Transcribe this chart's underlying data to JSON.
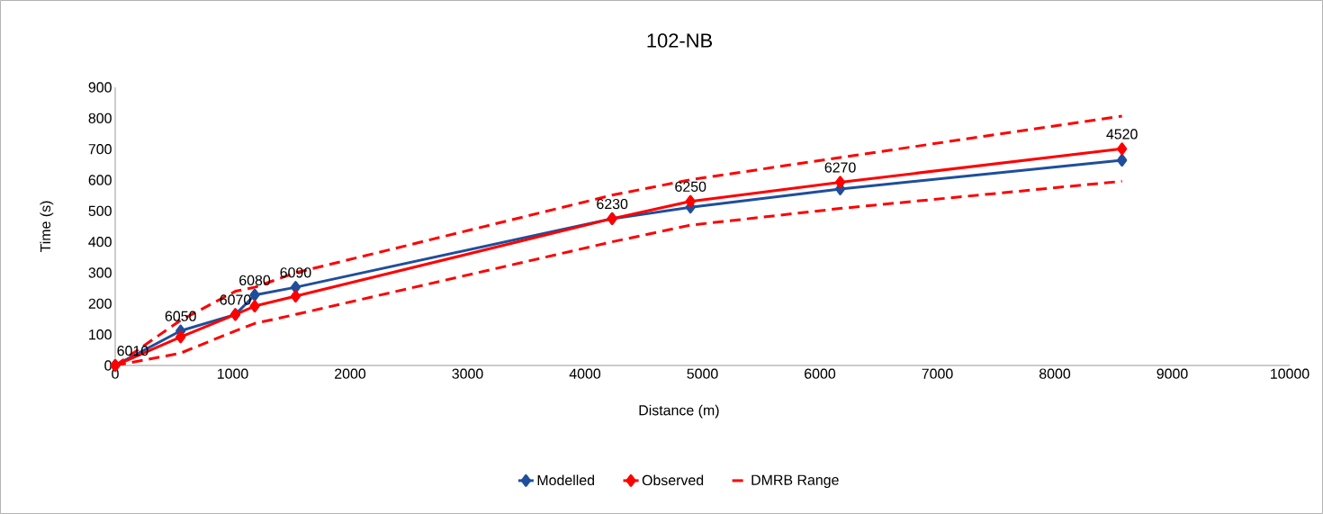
{
  "chart_data": {
    "type": "line",
    "title": "102-NB",
    "xlabel": "Distance (m)",
    "ylabel": "Time (s)",
    "xlim": [
      0,
      10000
    ],
    "ylim": [
      0,
      900
    ],
    "xticks": [
      0,
      1000,
      2000,
      3000,
      4000,
      5000,
      6000,
      7000,
      8000,
      9000,
      10000
    ],
    "yticks": [
      0,
      100,
      200,
      300,
      400,
      500,
      600,
      700,
      800,
      900
    ],
    "grid": false,
    "legend": "bottom",
    "series": [
      {
        "name": "Modelled",
        "color": "#1f4e9c",
        "marker": "diamond",
        "line_style": "solid",
        "x": [
          0,
          557,
          1023,
          1188,
          1536,
          4231,
          4898,
          6173,
          8572
        ],
        "values": [
          0,
          112,
          165,
          228,
          253,
          475,
          512,
          571,
          664
        ]
      },
      {
        "name": "Observed",
        "color": "#ff0000",
        "marker": "diamond",
        "line_style": "solid",
        "x": [
          0,
          557,
          1023,
          1188,
          1536,
          4231,
          4898,
          6173,
          8572
        ],
        "values": [
          0,
          92,
          165,
          192,
          224,
          475,
          531,
          593,
          701
        ]
      },
      {
        "name": "DMRB Range",
        "color": "#ff0000",
        "marker": "none",
        "line_style": "dashed",
        "x": [
          0,
          557,
          1023,
          1188,
          1536,
          4231,
          4898,
          6173,
          8572
        ],
        "values": [
          0,
          146,
          240,
          253,
          300,
          551,
          601,
          673,
          807
        ]
      },
      {
        "color": "#ff0000",
        "marker": "none",
        "line_style": "dashed",
        "x": [
          0,
          557,
          1023,
          1188,
          1536,
          4231,
          4898,
          6173,
          8572
        ],
        "values": [
          0,
          40,
          112,
          136,
          165,
          400,
          454,
          508,
          596
        ]
      }
    ],
    "annotations": [
      {
        "text": "6010",
        "x": 0,
        "y": 0
      },
      {
        "text": "6050",
        "x": 557,
        "y": 112
      },
      {
        "text": "6070",
        "x": 1023,
        "y": 165
      },
      {
        "text": "6080",
        "x": 1188,
        "y": 228
      },
      {
        "text": "6090",
        "x": 1536,
        "y": 253
      },
      {
        "text": "6230",
        "x": 4231,
        "y": 475
      },
      {
        "text": "6250",
        "x": 4898,
        "y": 531
      },
      {
        "text": "6270",
        "x": 6173,
        "y": 593
      },
      {
        "text": "4520",
        "x": 8572,
        "y": 701
      }
    ]
  }
}
